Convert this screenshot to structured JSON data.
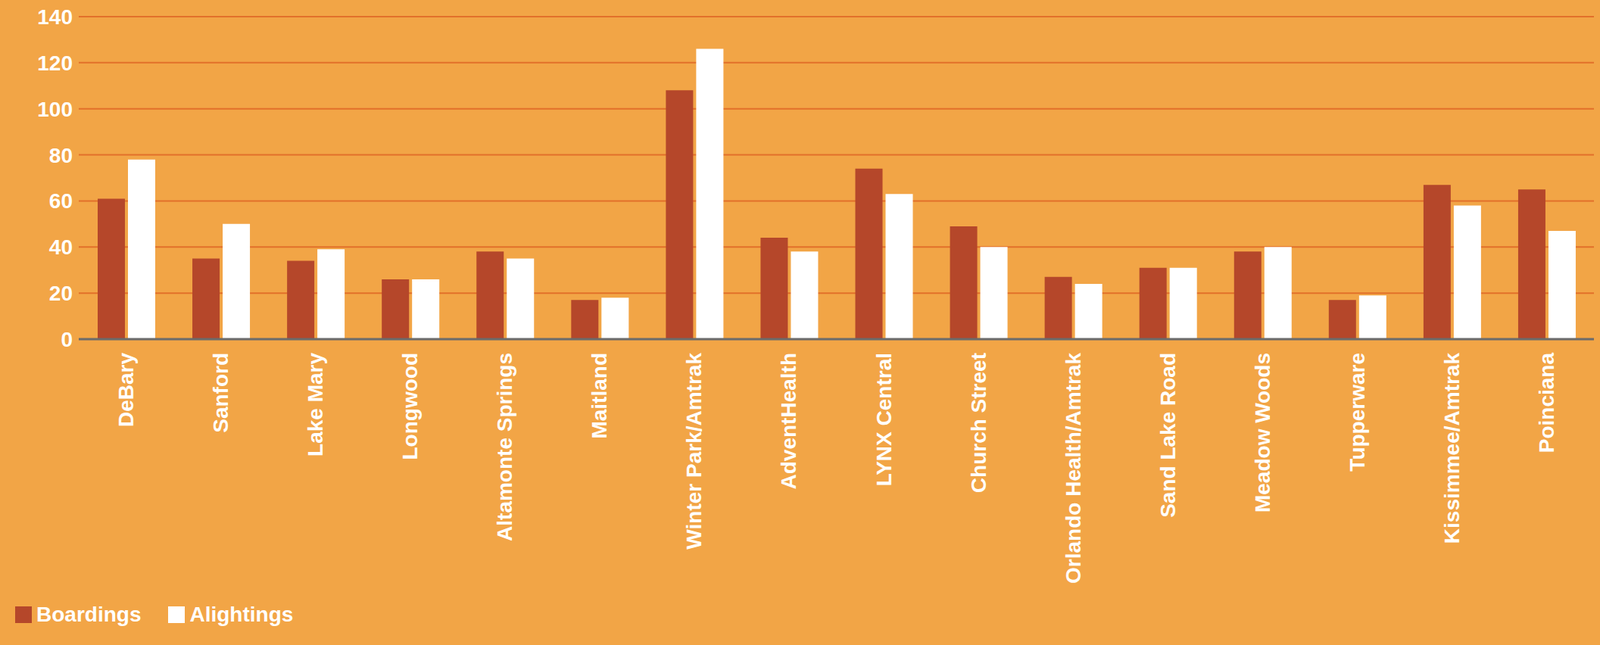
{
  "chart_data": {
    "type": "bar",
    "categories": [
      "DeBary",
      "Sanford",
      "Lake Mary",
      "Longwood",
      "Altamonte Springs",
      "Maitland",
      "Winter Park/Amtrak",
      "AdventHealth",
      "LYNX Central",
      "Church Street",
      "Orlando Health/Amtrak",
      "Sand Lake Road",
      "Meadow Woods",
      "Tupperware",
      "Kissimmee/Amtrak",
      "Poinciana"
    ],
    "series": [
      {
        "name": "Boardings",
        "color": "#b5472a",
        "values": [
          61,
          35,
          34,
          26,
          38,
          17,
          108,
          44,
          74,
          49,
          27,
          31,
          38,
          17,
          67,
          65
        ]
      },
      {
        "name": "Alightings",
        "color": "#ffffff",
        "values": [
          78,
          50,
          39,
          26,
          35,
          18,
          126,
          38,
          63,
          40,
          24,
          31,
          40,
          19,
          58,
          47
        ]
      }
    ],
    "ylim": [
      0,
      140
    ],
    "yticks": [
      0,
      20,
      40,
      60,
      80,
      100,
      120,
      140
    ],
    "grid": true,
    "legend": "lower left"
  }
}
